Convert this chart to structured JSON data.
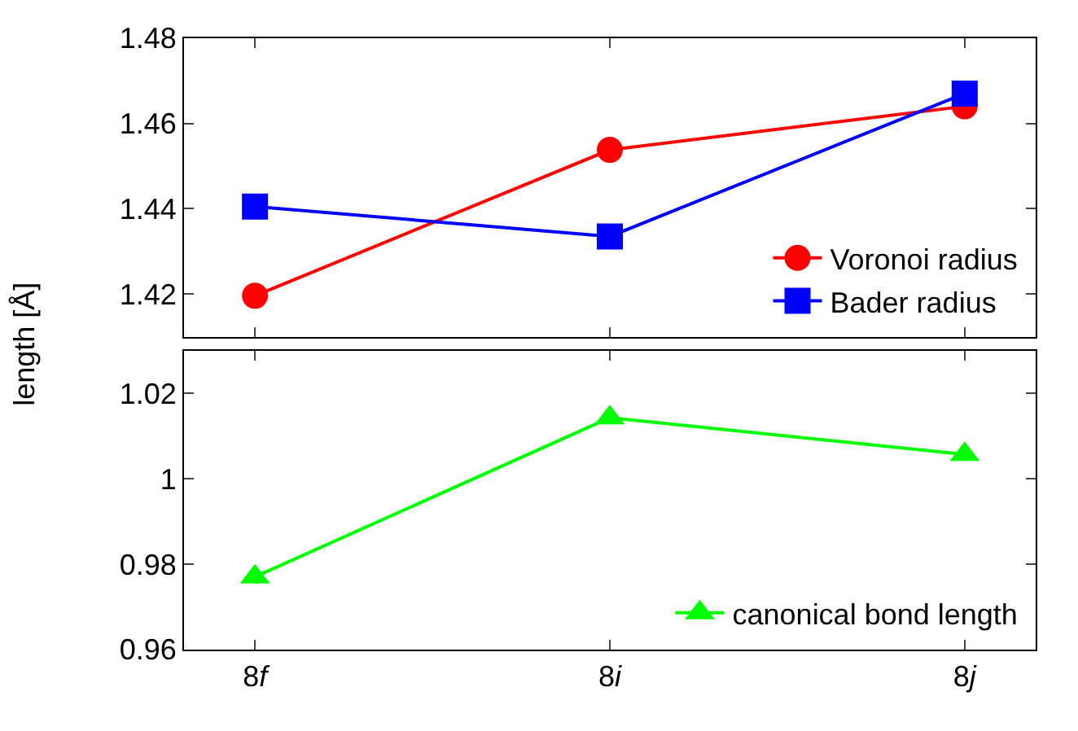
{
  "chart_data": [
    {
      "type": "line",
      "categories": [
        "8f",
        "8i",
        "8j"
      ],
      "ylabel": "length [Å]",
      "ylim": [
        1.41,
        1.48
      ],
      "yticks": [
        1.42,
        1.44,
        1.46,
        1.48
      ],
      "tick_labels": "y",
      "legend": "bottom right",
      "series": [
        {
          "name": "Voronoi radius",
          "color": "#ff0000",
          "marker": "circle",
          "values": [
            1.4196,
            1.4538,
            1.464
          ]
        },
        {
          "name": "Bader radius",
          "color": "#0000ff",
          "marker": "square",
          "values": [
            1.4405,
            1.4335,
            1.467
          ]
        }
      ]
    },
    {
      "type": "line",
      "categories": [
        "8f",
        "8i",
        "8j"
      ],
      "ylim": [
        0.96,
        1.03
      ],
      "yticks": [
        0.96,
        0.98,
        1,
        1.02
      ],
      "legend": "bottom right",
      "series": [
        {
          "name": "canonical bond length",
          "color": "#00ff00",
          "marker": "triangle",
          "values": [
            0.977,
            1.0143,
            1.0057
          ]
        }
      ]
    }
  ]
}
